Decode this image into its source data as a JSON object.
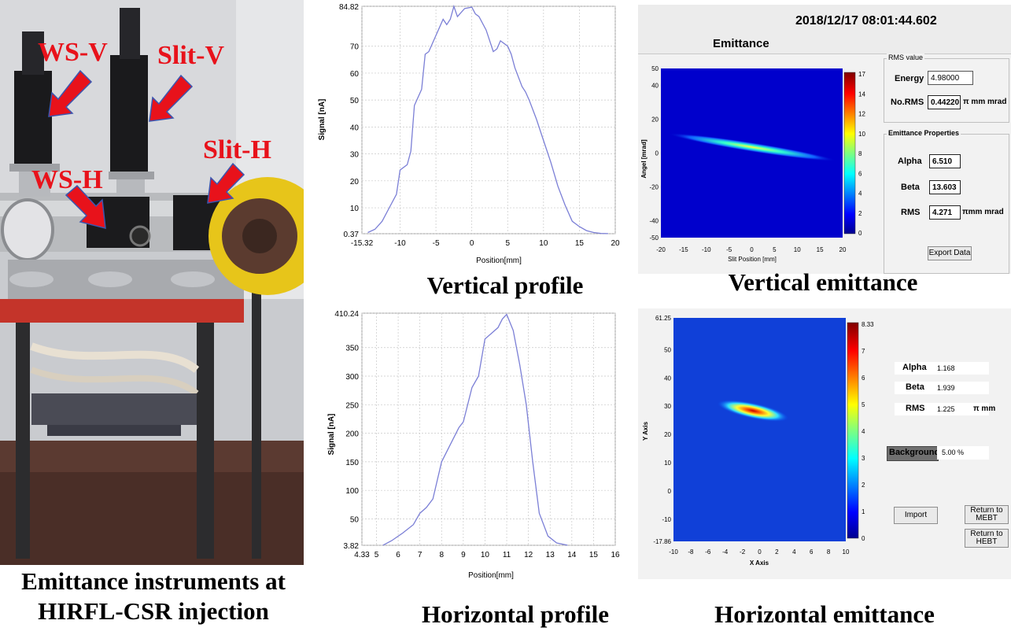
{
  "photo": {
    "labels": {
      "ws_v": "WS-V",
      "slit_v": "Slit-V",
      "ws_h": "WS-H",
      "slit_h": "Slit-H"
    },
    "caption_line1": "Emittance instruments at",
    "caption_line2": "HIRFL-CSR injection"
  },
  "captions": {
    "vertical_profile": "Vertical profile",
    "horizontal_profile": "Horizontal profile",
    "vertical_emittance": "Vertical emittance",
    "horizontal_emittance": "Horizontal emittance"
  },
  "vertical_emittance_ui": {
    "timestamp": "2018/12/17 08:01:44.602",
    "title": "Emittance",
    "rms_group": "RMS value",
    "energy_label": "Energy",
    "energy_value": "4.98000",
    "norms_label": "No.RMS",
    "norms_value": "0.44220",
    "norms_unit": "π mm mrad",
    "props_group": "Emittance Properties",
    "alpha_label": "Alpha",
    "alpha_value": "6.510",
    "beta_label": "Beta",
    "beta_value": "13.603",
    "rms_label": "RMS",
    "rms_value": "4.271",
    "rms_unit": "πmm mrad",
    "export_button": "Export Data",
    "xlabel": "Slit Position [mm]",
    "ylabel": "Angel [mrad]",
    "x_ticks": [
      "-20",
      "-15",
      "-10",
      "-5",
      "0",
      "5",
      "10",
      "15",
      "20"
    ],
    "y_ticks": [
      "50",
      "40",
      "20",
      "0",
      "-20",
      "-40",
      "-50"
    ],
    "colorbar_ticks": [
      "17",
      "14",
      "12",
      "10",
      "8",
      "6",
      "4",
      "2",
      "0"
    ]
  },
  "horizontal_emittance_ui": {
    "alpha_label": "Alpha",
    "alpha_value": "1.168",
    "beta_label": "Beta",
    "beta_value": "1.939",
    "rms_label": "RMS",
    "rms_value": "1.225",
    "rms_unit": "π  mm",
    "background_label": "Background",
    "background_value": "5.00 %",
    "import_button": "Import",
    "return_mebt_line1": "Return to",
    "return_mebt_line2": "MEBT",
    "return_hebt_line1": "Return to",
    "return_hebt_line2": "HEBT",
    "xlabel": "X Axis",
    "ylabel": "Y Axis",
    "x_ticks": [
      "-10",
      "-8",
      "-6",
      "-4",
      "-2",
      "0",
      "2",
      "4",
      "6",
      "8",
      "10"
    ],
    "y_ticks": [
      "61.25",
      "50",
      "40",
      "30",
      "20",
      "10",
      "0",
      "-10",
      "-17.86"
    ],
    "colorbar_ticks": [
      "8.33",
      "7",
      "6",
      "5",
      "4",
      "3",
      "2",
      "1",
      "0"
    ]
  },
  "chart_data": [
    {
      "type": "line",
      "xlabel": "Position[mm]",
      "ylabel": "Signal [nA]",
      "xlim": [
        -15.32,
        20
      ],
      "ylim": [
        0.37,
        84.82
      ],
      "x_ticks": [
        "-15.32",
        "-10",
        "-5",
        "0",
        "5",
        "10",
        "15",
        "20"
      ],
      "y_ticks": [
        "84.82",
        "70",
        "60",
        "50",
        "40",
        "30",
        "20",
        "10",
        "0.37"
      ],
      "grid": true,
      "series": [
        {
          "x": [
            -14.5,
            -13.5,
            -12.5,
            -11.5,
            -10.5,
            -10,
            -9,
            -8.5,
            -8,
            -7,
            -6.5,
            -6,
            -5,
            -4,
            -3.5,
            -3,
            -2.5,
            -2,
            -1,
            0,
            0.5,
            1,
            2,
            3,
            3.5,
            4,
            5,
            5.5,
            6,
            7,
            7.5,
            8,
            9,
            10,
            11,
            12,
            13,
            14,
            15,
            16,
            17,
            18,
            19
          ],
          "y": [
            0.8,
            2,
            5,
            10,
            15,
            24,
            26,
            31,
            48,
            54,
            67,
            68,
            74,
            80,
            78,
            80,
            84.8,
            81,
            84,
            84.5,
            82,
            81,
            76,
            68,
            69,
            72,
            70,
            67,
            62,
            55,
            53,
            50,
            43,
            35,
            27,
            18,
            11,
            5,
            3,
            1.5,
            0.8,
            0.5,
            0.4
          ]
        }
      ]
    },
    {
      "type": "line",
      "xlabel": "Position[mm]",
      "ylabel": "Signal [nA]",
      "xlim": [
        4.33,
        16
      ],
      "ylim": [
        3.82,
        410.24
      ],
      "x_ticks": [
        "4.33",
        "5",
        "6",
        "7",
        "8",
        "9",
        "10",
        "11",
        "12",
        "13",
        "14",
        "15",
        "16"
      ],
      "y_ticks": [
        "410.24",
        "350",
        "300",
        "250",
        "200",
        "150",
        "100",
        "50",
        "3.82"
      ],
      "grid": true,
      "series": [
        {
          "x": [
            5.3,
            5.7,
            6.2,
            6.7,
            7,
            7.3,
            7.6,
            8,
            8.4,
            8.8,
            9,
            9.4,
            9.7,
            10,
            10.3,
            10.6,
            10.8,
            11,
            11.3,
            11.6,
            11.9,
            12.2,
            12.5,
            12.9,
            13.3,
            13.8
          ],
          "y": [
            4,
            12,
            25,
            40,
            60,
            70,
            85,
            150,
            180,
            210,
            220,
            280,
            300,
            365,
            375,
            385,
            400,
            408,
            380,
            320,
            250,
            150,
            60,
            20,
            8,
            4
          ]
        }
      ]
    }
  ]
}
